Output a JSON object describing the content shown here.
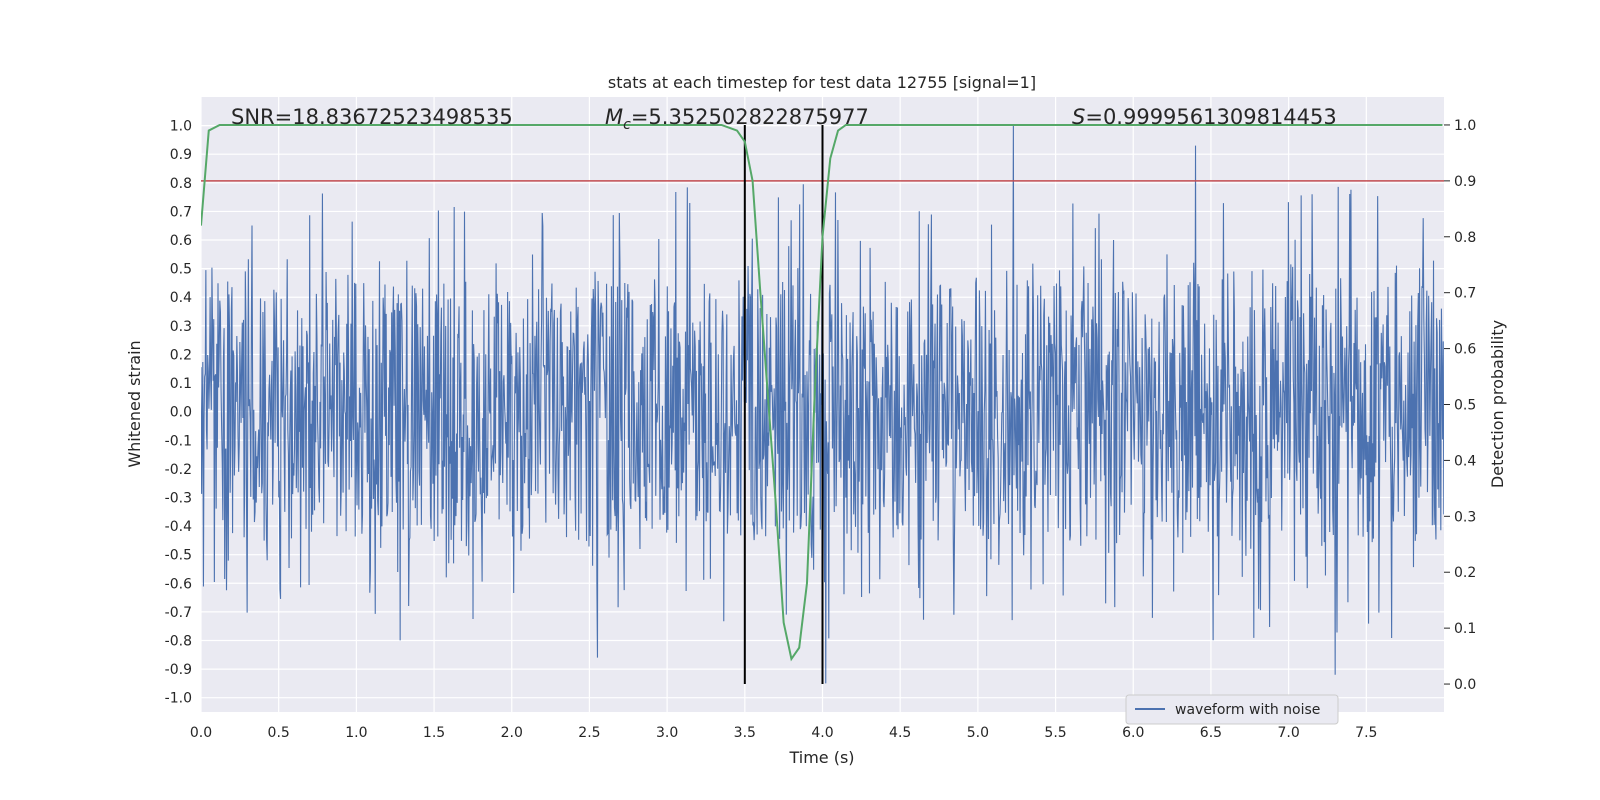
{
  "chart_data": {
    "type": "line",
    "title": "stats at each timestep for test data 12755 [signal=1]",
    "xlabel": "Time (s)",
    "ylabel_left": "Whitened strain",
    "ylabel_right": "Detection probability",
    "xlim": [
      0,
      8
    ],
    "ylim_left": [
      -1.05,
      1.1
    ],
    "ylim_right": [
      -0.05,
      1.05
    ],
    "x_ticks": [
      "0.0",
      "0.5",
      "1.0",
      "1.5",
      "2.0",
      "2.5",
      "3.0",
      "3.5",
      "4.0",
      "4.5",
      "5.0",
      "5.5",
      "6.0",
      "6.5",
      "7.0",
      "7.5"
    ],
    "y_ticks_left": [
      "1.0",
      "0.9",
      "0.8",
      "0.7",
      "0.6",
      "0.5",
      "0.4",
      "0.3",
      "0.2",
      "0.1",
      "0.0",
      "-0.1",
      "-0.2",
      "-0.3",
      "-0.4",
      "-0.5",
      "-0.6",
      "-0.7",
      "-0.8",
      "-0.9",
      "-1.0"
    ],
    "y_ticks_right": [
      "1.0",
      "0.9",
      "0.8",
      "0.7",
      "0.6",
      "0.5",
      "0.4",
      "0.3",
      "0.2",
      "0.1",
      "0.0"
    ],
    "grid": true,
    "legend_placement": "lower-right",
    "annotations": {
      "snr": "SNR=18.83672523498535",
      "mc_symbol": "M",
      "mc_sub": "c",
      "mc_value": "=5.352502822875977",
      "s_symbol": "S",
      "s_value": "=0.9999561309814453"
    },
    "series": [
      {
        "name": "waveform with noise",
        "color": "#4c72b0",
        "kind": "noise",
        "samples": 2048,
        "t_range": [
          0,
          7.999
        ],
        "envelope_upper_approx": 0.45,
        "envelope_lower_approx": -0.42,
        "peak_max": 1.0,
        "peak_min": -0.95,
        "notable_peaks": [
          [
            5.23,
            1.0
          ],
          [
            6.4,
            0.93
          ],
          [
            4.02,
            -0.95
          ],
          [
            7.3,
            -0.92
          ],
          [
            2.55,
            -0.86
          ]
        ]
      },
      {
        "color": "#55a868",
        "axis": "right",
        "x": [
          0.0,
          0.05,
          0.12,
          0.3,
          1.0,
          2.0,
          3.0,
          3.35,
          3.45,
          3.5,
          3.55,
          3.6,
          3.7,
          3.75,
          3.8,
          3.85,
          3.9,
          3.95,
          4.0,
          4.05,
          4.1,
          4.15,
          4.3,
          5.0,
          6.0,
          7.0,
          7.99
        ],
        "y": [
          0.82,
          0.99,
          1.0,
          1.0,
          1.0,
          1.0,
          1.0,
          1.0,
          0.99,
          0.97,
          0.9,
          0.7,
          0.32,
          0.11,
          0.045,
          0.065,
          0.18,
          0.52,
          0.8,
          0.94,
          0.99,
          1.0,
          1.0,
          1.0,
          1.0,
          1.0,
          1.0
        ]
      },
      {
        "color": "#c44e52",
        "axis": "right",
        "kind": "threshold",
        "y": 0.9
      }
    ],
    "vlines": [
      3.5,
      4.0
    ],
    "vline_color": "#000000"
  }
}
